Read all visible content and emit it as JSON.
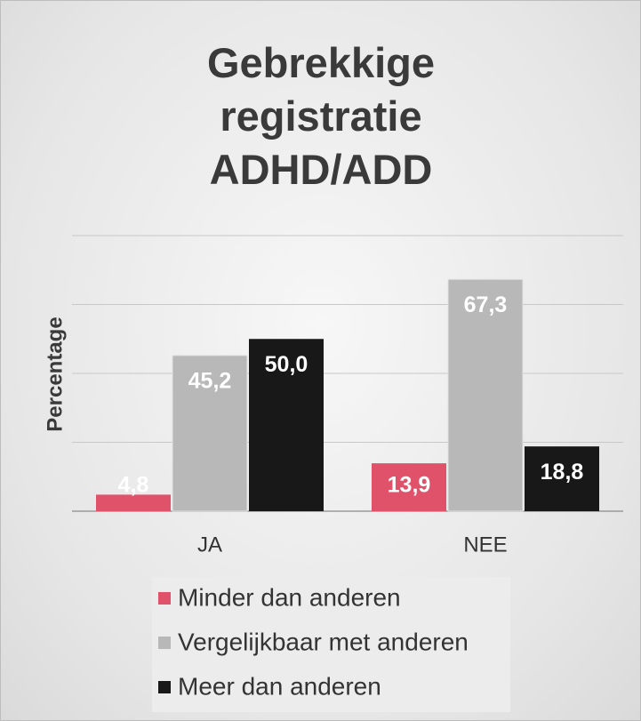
{
  "chart_data": {
    "type": "bar",
    "title": "Gebrekkige registratie ADHD/ADD",
    "y_label": "Percentage",
    "categories": [
      "JA",
      "NEE"
    ],
    "series": [
      {
        "name": "Minder dan anderen",
        "color": "#e0526a",
        "values": [
          4.8,
          13.9
        ],
        "value_labels": [
          "4,8",
          "13,9"
        ]
      },
      {
        "name": "Vergelijkbaar met anderen",
        "color": "#b8b8b8",
        "values": [
          45.2,
          67.3
        ],
        "value_labels": [
          "45,2",
          "67,3"
        ]
      },
      {
        "name": "Meer dan anderen",
        "color": "#181818",
        "values": [
          50.0,
          18.8
        ],
        "value_labels": [
          "50,0",
          "18,8"
        ]
      }
    ],
    "ylim": [
      0,
      80
    ],
    "yticks": [
      0,
      20,
      40,
      60,
      80
    ],
    "grid": true,
    "legend": "bottom"
  }
}
